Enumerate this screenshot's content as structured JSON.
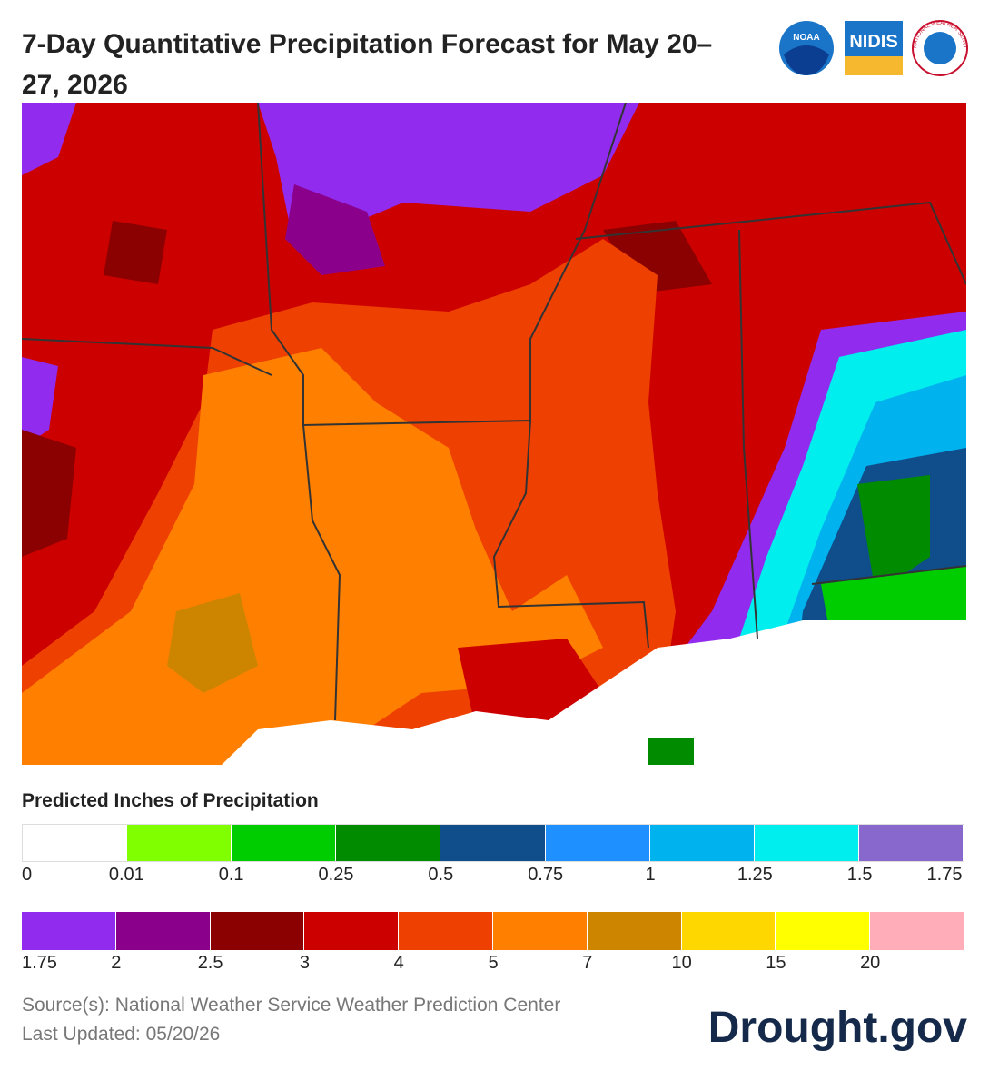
{
  "header": {
    "title": "7-Day Quantitative Precipitation Forecast for May 20–27, 2026",
    "logos": {
      "noaa": "NOAA",
      "nidis": "NIDIS",
      "nws": "NATIONAL WEATHER SERVICE"
    }
  },
  "legend": {
    "title": "Predicted Inches of Precipitation",
    "rows": [
      {
        "colors": [
          "#ffffff",
          "#7fff00",
          "#00cd00",
          "#008b00",
          "#104e8b",
          "#1e90ff",
          "#00b2ee",
          "#00eeee",
          "#8968cd"
        ],
        "labels": [
          0,
          0.01,
          0.1,
          0.25,
          0.5,
          0.75,
          1,
          1.25,
          1.5,
          1.75
        ]
      },
      {
        "colors": [
          "#912cee",
          "#8b008b",
          "#8b0000",
          "#cd0000",
          "#ee4000",
          "#ff7f00",
          "#cd8500",
          "#ffd700",
          "#ffff00",
          "#ffaeb9"
        ],
        "labels": [
          1.75,
          2,
          2.5,
          3,
          4,
          5,
          7,
          10,
          15,
          20
        ]
      }
    ]
  },
  "footer": {
    "source": "Source(s): National Weather Service Weather Prediction Center",
    "updated": "Last Updated: 05/20/26",
    "brand": "Drought.gov"
  }
}
